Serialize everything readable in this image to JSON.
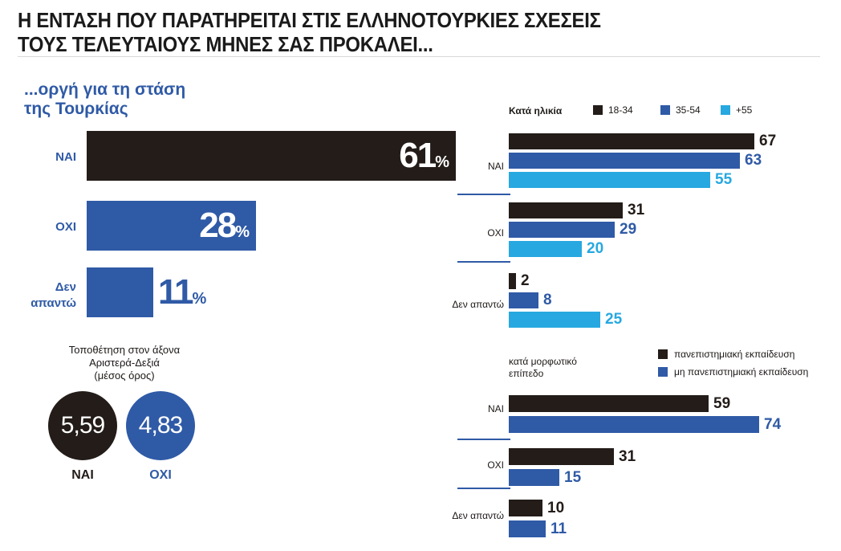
{
  "headline": [
    "Η ΕΝΤΑΣΗ ΠΟΥ ΠΑΡΑΤΗΡΕΙΤΑΙ ΣΤΙΣ ΕΛΛΗΝΟΤΟΥΡΚΙΕΣ ΣΧΕΣΕΙΣ",
    "ΤΟΥΣ ΤΕΛΕΥΤΑΙΟΥΣ ΜΗΝΕΣ ΣΑΣ ΠΡΟΚΑΛΕΙ..."
  ],
  "subtitle": "...οργή για τη στάση\nτης Τουρκίας",
  "colors": {
    "black": "#231c19",
    "dark_blue": "#2f5aa6",
    "light_blue": "#27a8e0"
  },
  "chart_data": [
    {
      "type": "bar",
      "orientation": "horizontal",
      "title": "...οργή για τη στάση της Τουρκίας",
      "categories": [
        "ΝΑΙ",
        "ΟΧΙ",
        "Δεν\nαπαντώ"
      ],
      "values": [
        61,
        28,
        11
      ],
      "value_suffix": "%",
      "colors": [
        "#231c19",
        "#2f5aa6",
        "#2f5aa6"
      ],
      "xlim": [
        0,
        61
      ]
    },
    {
      "type": "bar",
      "orientation": "horizontal",
      "title": "Κατά ηλικία",
      "categories": [
        "ΝΑΙ",
        "ΟΧΙ",
        "Δεν απαντώ"
      ],
      "series": [
        {
          "name": "18-34",
          "values": [
            67,
            31,
            2
          ],
          "color": "#231c19"
        },
        {
          "name": "35-54",
          "values": [
            63,
            29,
            8
          ],
          "color": "#2f5aa6"
        },
        {
          "name": "+55",
          "values": [
            55,
            20,
            25
          ],
          "color": "#27a8e0"
        }
      ],
      "legend": "top-right",
      "xlim": [
        0,
        67
      ]
    },
    {
      "type": "bar",
      "orientation": "horizontal",
      "title": "κατά μορφωτικό\nεπίπεδο",
      "categories": [
        "ΝΑΙ",
        "ΟΧΙ",
        "Δεν απαντώ"
      ],
      "series": [
        {
          "name": "πανεπιστημιακή εκπαίδευση",
          "values": [
            59,
            31,
            10
          ],
          "color": "#231c19"
        },
        {
          "name": "μη πανεπιστημιακή εκπαίδευση",
          "values": [
            74,
            15,
            11
          ],
          "color": "#2f5aa6"
        }
      ],
      "legend": "top-right",
      "xlim": [
        0,
        74
      ]
    }
  ],
  "axis_note": "Τοποθέτηση στον άξονα\nΑριστερά-Δεξιά\n(μέσος όρος)",
  "circles": [
    {
      "value": "5,59",
      "label": "ΝΑΙ",
      "color": "#231c19"
    },
    {
      "value": "4,83",
      "label": "ΟΧΙ",
      "color": "#2f5aa6"
    }
  ]
}
